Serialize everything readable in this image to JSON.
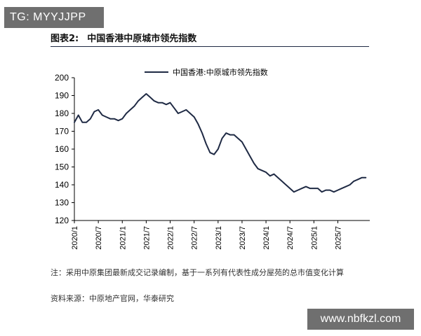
{
  "watermark_top": "TG: MYYJJPP",
  "watermark_bottom": "www.nbfkzl.com",
  "figure": {
    "label": "图表2:",
    "title": "中国香港中原城市领先指数"
  },
  "note": "注：采用中原集团最新成交记录编制，基于一系列有代表性成分屋苑的总市值变化计算",
  "source": "资料来源：中原地产官网，华泰研究",
  "colors": {
    "series": "#1f2a44",
    "axis": "#000000"
  },
  "chart_data": {
    "type": "line",
    "title": "",
    "xlabel": "",
    "ylabel": "",
    "ylim": [
      120,
      200
    ],
    "yticks": [
      120,
      130,
      140,
      150,
      160,
      170,
      180,
      190,
      200
    ],
    "xlim": [
      "2020/1",
      "2026/3"
    ],
    "xticks": [
      "2020/1",
      "2020/7",
      "2021/1",
      "2021/7",
      "2022/1",
      "2022/7",
      "2023/1",
      "2023/7",
      "2024/1",
      "2024/7",
      "2025/1",
      "2025/7"
    ],
    "grid": false,
    "legend": "top-left",
    "series": [
      {
        "name": "中国香港:中原城市领先指数",
        "color": "#1f2a44",
        "points": [
          [
            "2020/1",
            175
          ],
          [
            "2020/2",
            179
          ],
          [
            "2020/3",
            175
          ],
          [
            "2020/4",
            175
          ],
          [
            "2020/5",
            177
          ],
          [
            "2020/6",
            181
          ],
          [
            "2020/7",
            182
          ],
          [
            "2020/8",
            179
          ],
          [
            "2020/9",
            178
          ],
          [
            "2020/10",
            177
          ],
          [
            "2020/11",
            177
          ],
          [
            "2020/12",
            176
          ],
          [
            "2021/1",
            177
          ],
          [
            "2021/2",
            180
          ],
          [
            "2021/3",
            182
          ],
          [
            "2021/4",
            184
          ],
          [
            "2021/5",
            187
          ],
          [
            "2021/6",
            189
          ],
          [
            "2021/7",
            191
          ],
          [
            "2021/8",
            189
          ],
          [
            "2021/9",
            187
          ],
          [
            "2021/10",
            186
          ],
          [
            "2021/11",
            186
          ],
          [
            "2021/12",
            185
          ],
          [
            "2022/1",
            186
          ],
          [
            "2022/2",
            183
          ],
          [
            "2022/3",
            180
          ],
          [
            "2022/4",
            181
          ],
          [
            "2022/5",
            182
          ],
          [
            "2022/6",
            180
          ],
          [
            "2022/7",
            178
          ],
          [
            "2022/8",
            174
          ],
          [
            "2022/9",
            169
          ],
          [
            "2022/10",
            163
          ],
          [
            "2022/11",
            158
          ],
          [
            "2022/12",
            157
          ],
          [
            "2023/1",
            160
          ],
          [
            "2023/2",
            166
          ],
          [
            "2023/3",
            169
          ],
          [
            "2023/4",
            168
          ],
          [
            "2023/5",
            168
          ],
          [
            "2023/6",
            166
          ],
          [
            "2023/7",
            164
          ],
          [
            "2023/8",
            160
          ],
          [
            "2023/9",
            156
          ],
          [
            "2023/10",
            152
          ],
          [
            "2023/11",
            149
          ],
          [
            "2023/12",
            148
          ],
          [
            "2024/1",
            147
          ],
          [
            "2024/2",
            145
          ],
          [
            "2024/3",
            146
          ],
          [
            "2024/4",
            144
          ],
          [
            "2024/5",
            142
          ],
          [
            "2024/6",
            140
          ],
          [
            "2024/7",
            138
          ],
          [
            "2024/8",
            136
          ],
          [
            "2024/9",
            137
          ],
          [
            "2024/10",
            138
          ],
          [
            "2024/11",
            139
          ],
          [
            "2024/12",
            138
          ],
          [
            "2025/1",
            138
          ],
          [
            "2025/2",
            138
          ],
          [
            "2025/3",
            136
          ],
          [
            "2025/4",
            137
          ],
          [
            "2025/5",
            137
          ],
          [
            "2025/6",
            136
          ],
          [
            "2025/7",
            137
          ],
          [
            "2025/8",
            138
          ],
          [
            "2025/9",
            139
          ],
          [
            "2025/10",
            140
          ],
          [
            "2025/11",
            142
          ],
          [
            "2025/12",
            143
          ],
          [
            "2026/1",
            144
          ],
          [
            "2026/2",
            144
          ]
        ]
      }
    ]
  }
}
